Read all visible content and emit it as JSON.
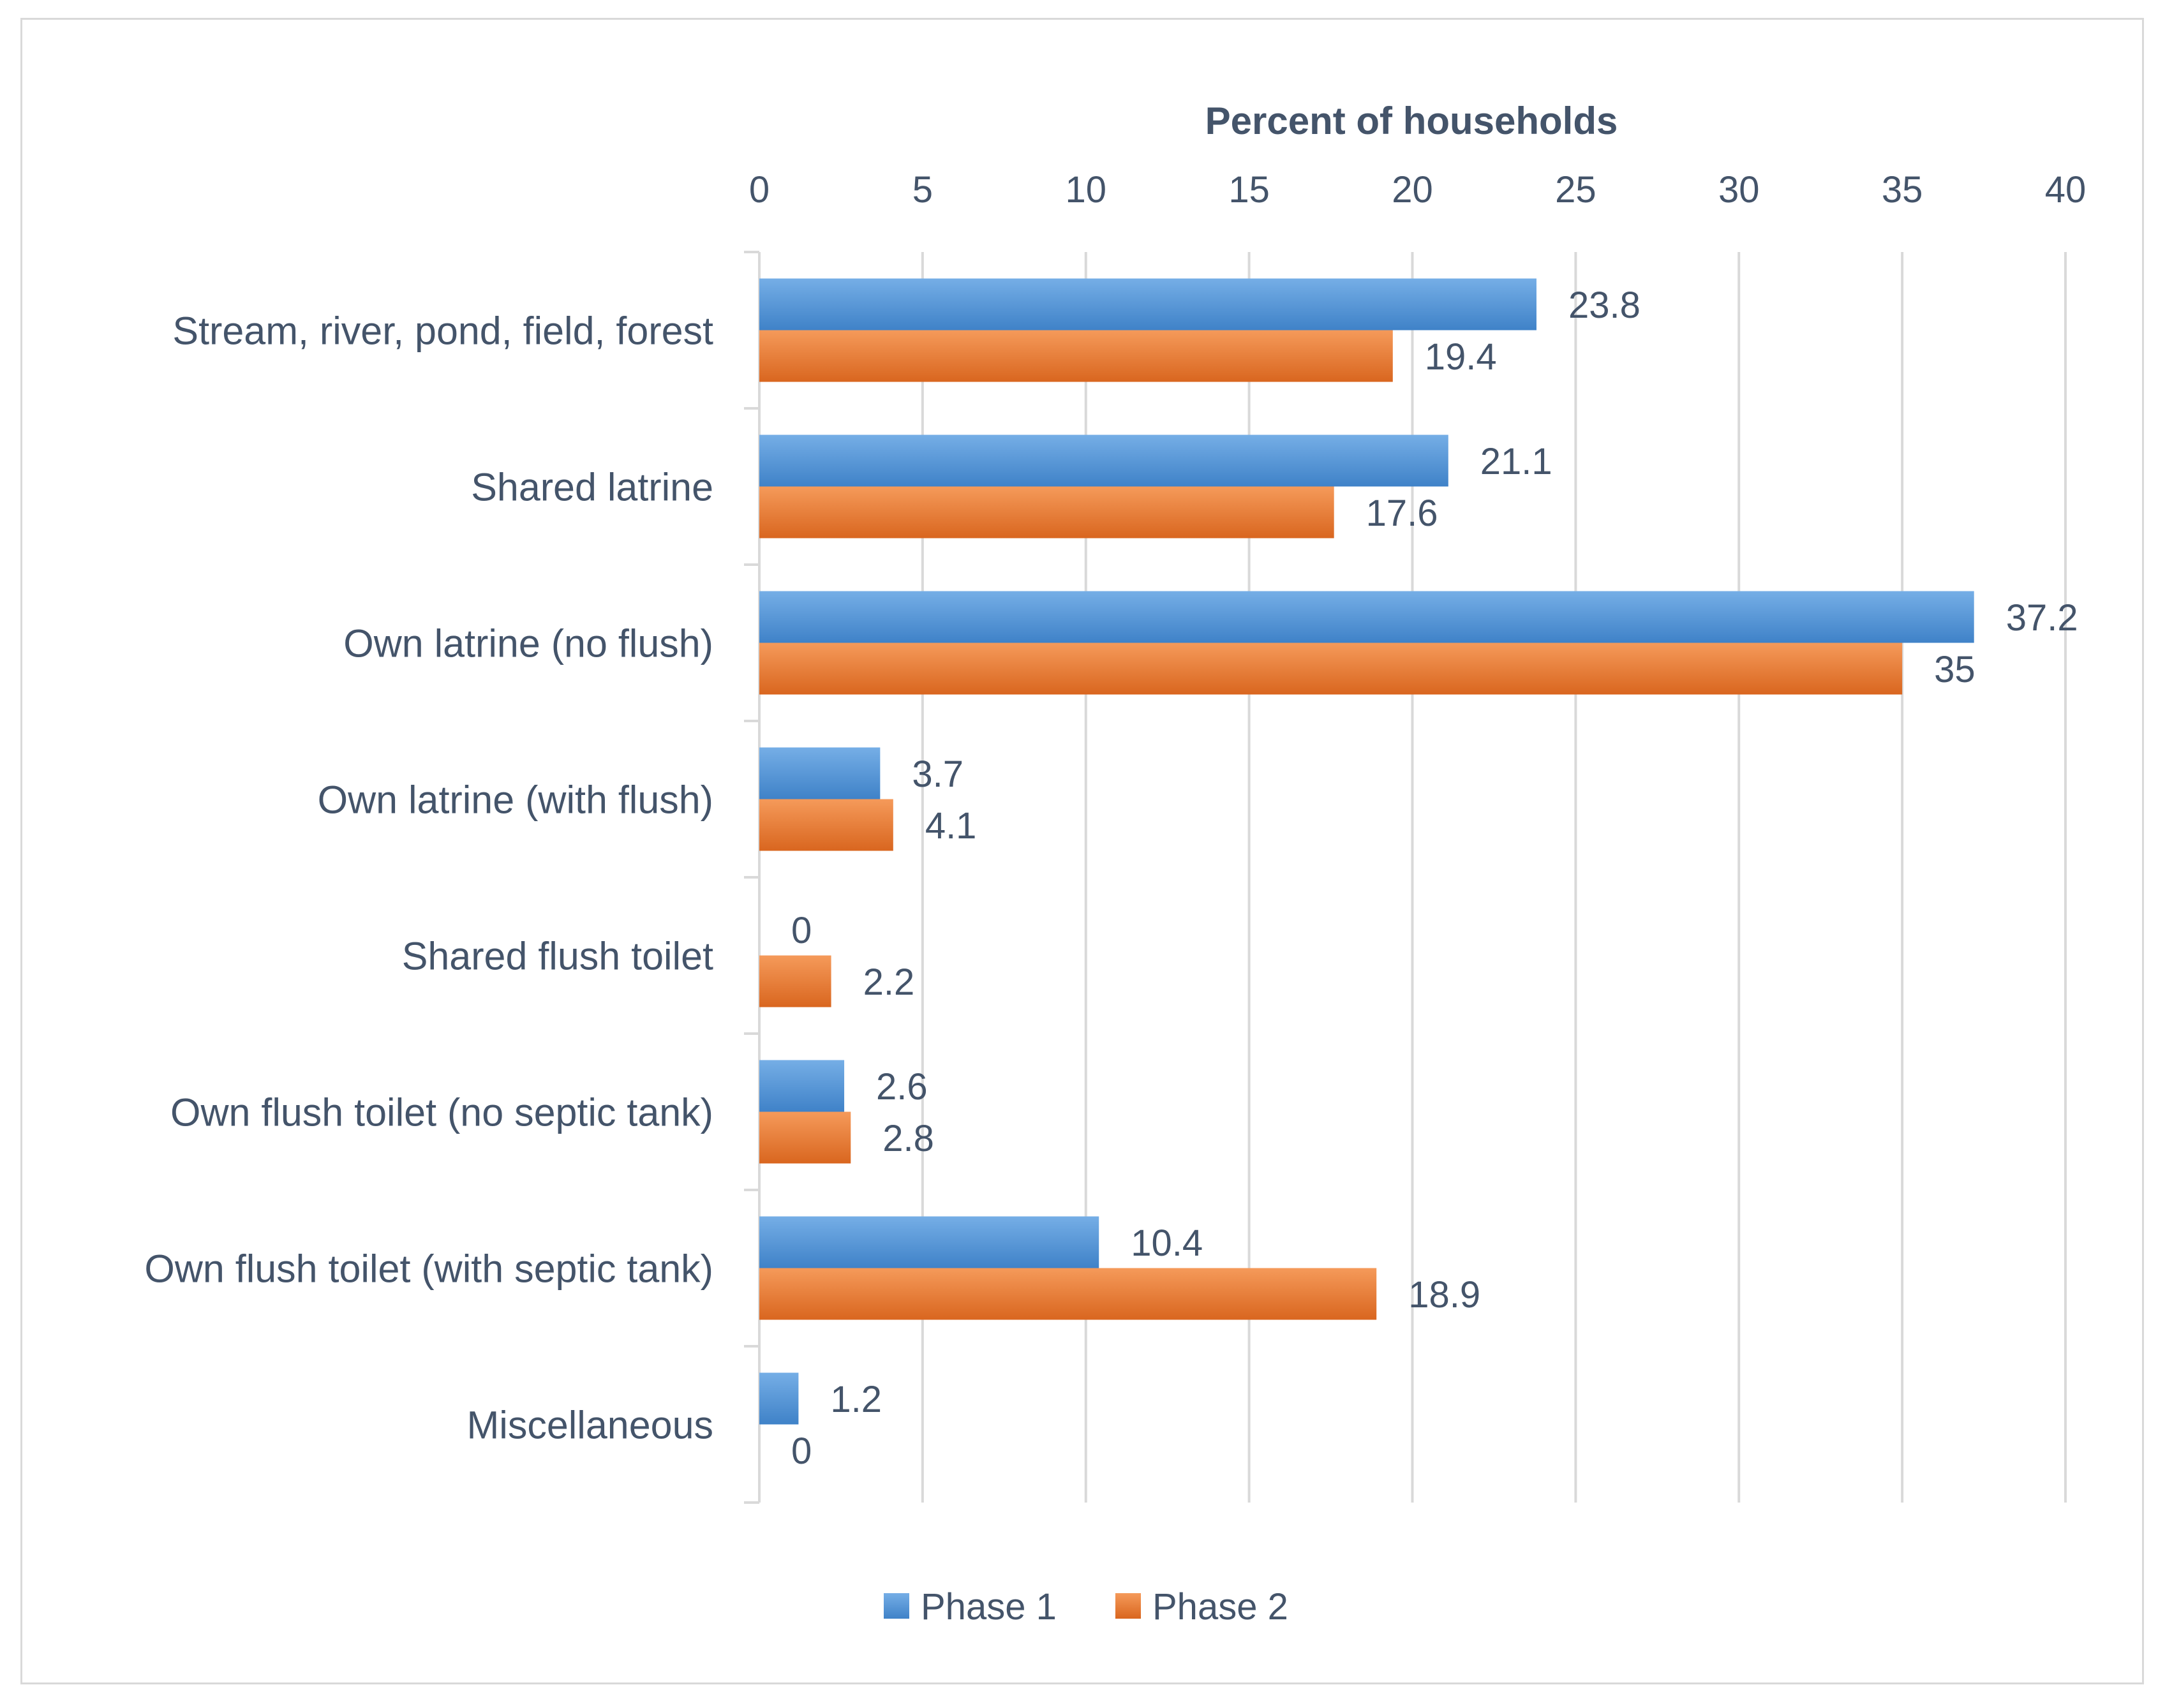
{
  "chart_data": {
    "type": "bar",
    "orientation": "horizontal",
    "title": "",
    "xlabel": "Percent of households",
    "ylabel": "",
    "xlim": [
      0,
      40
    ],
    "xticks": [
      0,
      5,
      10,
      15,
      20,
      25,
      30,
      35,
      40
    ],
    "grid": true,
    "legend_position": "bottom",
    "categories": [
      "Stream, river, pond, field, forest",
      "Shared latrine",
      "Own latrine (no flush)",
      "Own latrine (with flush)",
      "Shared flush toilet",
      "Own flush toilet (no septic tank)",
      "Own flush toilet (with septic tank)",
      "Miscellaneous"
    ],
    "series": [
      {
        "name": "Phase 1",
        "color": "#5b9bd5",
        "values": [
          23.8,
          21.1,
          37.2,
          3.7,
          0,
          2.6,
          10.4,
          1.2
        ]
      },
      {
        "name": "Phase 2",
        "color": "#ed7d31",
        "values": [
          19.4,
          17.6,
          35,
          4.1,
          2.2,
          2.8,
          18.9,
          0
        ]
      }
    ]
  }
}
